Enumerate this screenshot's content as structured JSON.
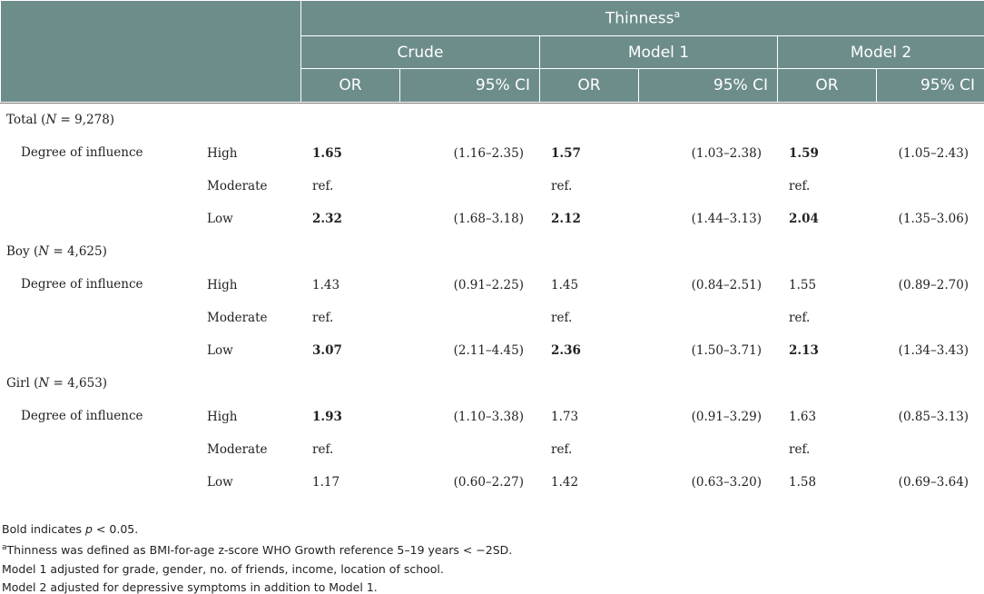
{
  "header": {
    "top": "Thinness",
    "top_sup": "a",
    "models": [
      "Crude",
      "Model 1",
      "Model 2"
    ],
    "or_label": "OR",
    "ci_label": "95% CI"
  },
  "groups": [
    {
      "name": "Total",
      "n_label": "N",
      "n_value": " = 9,278)",
      "factor": "Degree of influence",
      "rows": [
        {
          "level": "High",
          "c_or": "1.65",
          "c_ci": "(1.16–2.35)",
          "m1_or": "1.57",
          "m1_ci": "(1.03–2.38)",
          "m2_or": "1.59",
          "m2_ci": "(1.05–2.43)",
          "bold": [
            true,
            true,
            true
          ]
        },
        {
          "level": "Moderate",
          "c_or": "ref.",
          "c_ci": "",
          "m1_or": "ref.",
          "m1_ci": "",
          "m2_or": "ref.",
          "m2_ci": "",
          "bold": [
            false,
            false,
            false
          ]
        },
        {
          "level": "Low",
          "c_or": "2.32",
          "c_ci": "(1.68–3.18)",
          "m1_or": "2.12",
          "m1_ci": "(1.44–3.13)",
          "m2_or": "2.04",
          "m2_ci": "(1.35–3.06)",
          "bold": [
            true,
            true,
            true
          ]
        }
      ]
    },
    {
      "name": "Boy",
      "n_label": "N",
      "n_value": " = 4,625)",
      "factor": "Degree of influence",
      "rows": [
        {
          "level": "High",
          "c_or": "1.43",
          "c_ci": "(0.91–2.25)",
          "m1_or": "1.45",
          "m1_ci": "(0.84–2.51)",
          "m2_or": "1.55",
          "m2_ci": "(0.89–2.70)",
          "bold": [
            false,
            false,
            false
          ]
        },
        {
          "level": "Moderate",
          "c_or": "ref.",
          "c_ci": "",
          "m1_or": "ref.",
          "m1_ci": "",
          "m2_or": "ref.",
          "m2_ci": "",
          "bold": [
            false,
            false,
            false
          ]
        },
        {
          "level": "Low",
          "c_or": "3.07",
          "c_ci": "(2.11–4.45)",
          "m1_or": "2.36",
          "m1_ci": "(1.50–3.71)",
          "m2_or": "2.13",
          "m2_ci": "(1.34–3.43)",
          "bold": [
            true,
            true,
            true
          ]
        }
      ]
    },
    {
      "name": "Girl",
      "n_label": "N",
      "n_value": " = 4,653)",
      "factor": "Degree of influence",
      "rows": [
        {
          "level": "High",
          "c_or": "1.93",
          "c_ci": "(1.10–3.38)",
          "m1_or": "1.73",
          "m1_ci": "(0.91–3.29)",
          "m2_or": "1.63",
          "m2_ci": "(0.85–3.13)",
          "bold": [
            true,
            false,
            false
          ]
        },
        {
          "level": "Moderate",
          "c_or": "ref.",
          "c_ci": "",
          "m1_or": "ref.",
          "m1_ci": "",
          "m2_or": "ref.",
          "m2_ci": "",
          "bold": [
            false,
            false,
            false
          ]
        },
        {
          "level": "Low",
          "c_or": "1.17",
          "c_ci": "(0.60–2.27)",
          "m1_or": "1.42",
          "m1_ci": "(0.63–3.20)",
          "m2_or": "1.58",
          "m2_ci": "(0.69–3.64)",
          "bold": [
            false,
            false,
            false
          ]
        }
      ]
    }
  ],
  "footnotes": {
    "bold_pre": "Bold indicates ",
    "bold_p": "p",
    "bold_post": " < 0.05.",
    "a_sup": "a",
    "a_text": "Thinness was defined as BMI-for-age z-score WHO Growth reference 5–19 years < −2SD.",
    "model1": "Model 1 adjusted for grade, gender, no. of friends, income, location of school.",
    "model2": "Model 2 adjusted for depressive symptoms in addition to Model 1."
  },
  "colors": {
    "header_bg": "#6d8d8b",
    "group_bg": "#ddeeec"
  }
}
